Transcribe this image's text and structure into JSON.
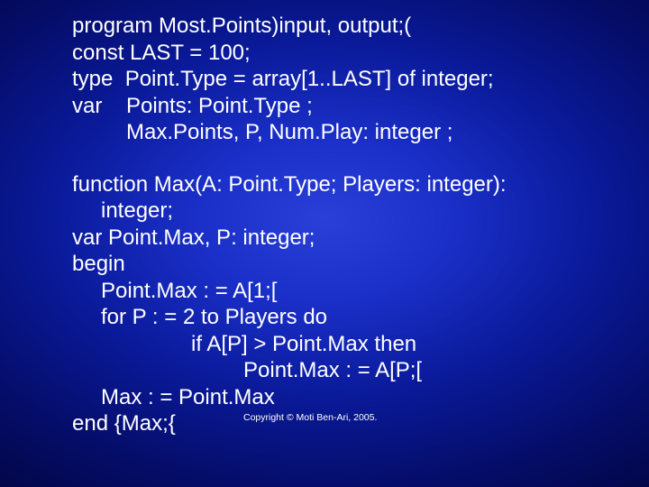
{
  "slide": {
    "background_gradient": {
      "type": "radial",
      "center_color": "#2a3fd8",
      "mid_color": "#0a1a9a",
      "edge_color": "#000028"
    },
    "text_color": "#ffffff",
    "font_family": "Arial",
    "font_size_pt": 18,
    "line_height": 1.23,
    "copyright": "Copyright © Moti Ben-Ari, 2005.",
    "copyright_font_size_pt": 8,
    "code_lines": [
      {
        "text": "program Most.Points)input, output;(",
        "indent": 0
      },
      {
        "text": "const LAST = 100;",
        "indent": 0
      },
      {
        "text": "type  Point.Type = array[1..LAST] of integer;",
        "indent": 0
      },
      {
        "text": "var    Points: Point.Type ;",
        "indent": 0
      },
      {
        "text": "         Max.Points, P, Num.Play: integer ;",
        "indent": 0
      },
      {
        "text": "",
        "indent": 0,
        "spacer": true
      },
      {
        "text": "function Max(A: Point.Type; Players: integer):",
        "indent": 0
      },
      {
        "text": "integer;",
        "indent": 1
      },
      {
        "text": "var Point.Max, P: integer;",
        "indent": 0
      },
      {
        "text": "begin",
        "indent": 0
      },
      {
        "text": "Point.Max : = A[1;[",
        "indent": 1
      },
      {
        "text": "for P : = 2 to Players do",
        "indent": 1
      },
      {
        "text": "if A[P] > Point.Max then",
        "indent": 3
      },
      {
        "text": "Point.Max : = A[P;[",
        "indent": 4
      },
      {
        "text": "Max : = Point.Max",
        "indent": 1
      },
      {
        "text": "end {Max;{",
        "indent": 0,
        "has_copyright": true
      }
    ]
  }
}
